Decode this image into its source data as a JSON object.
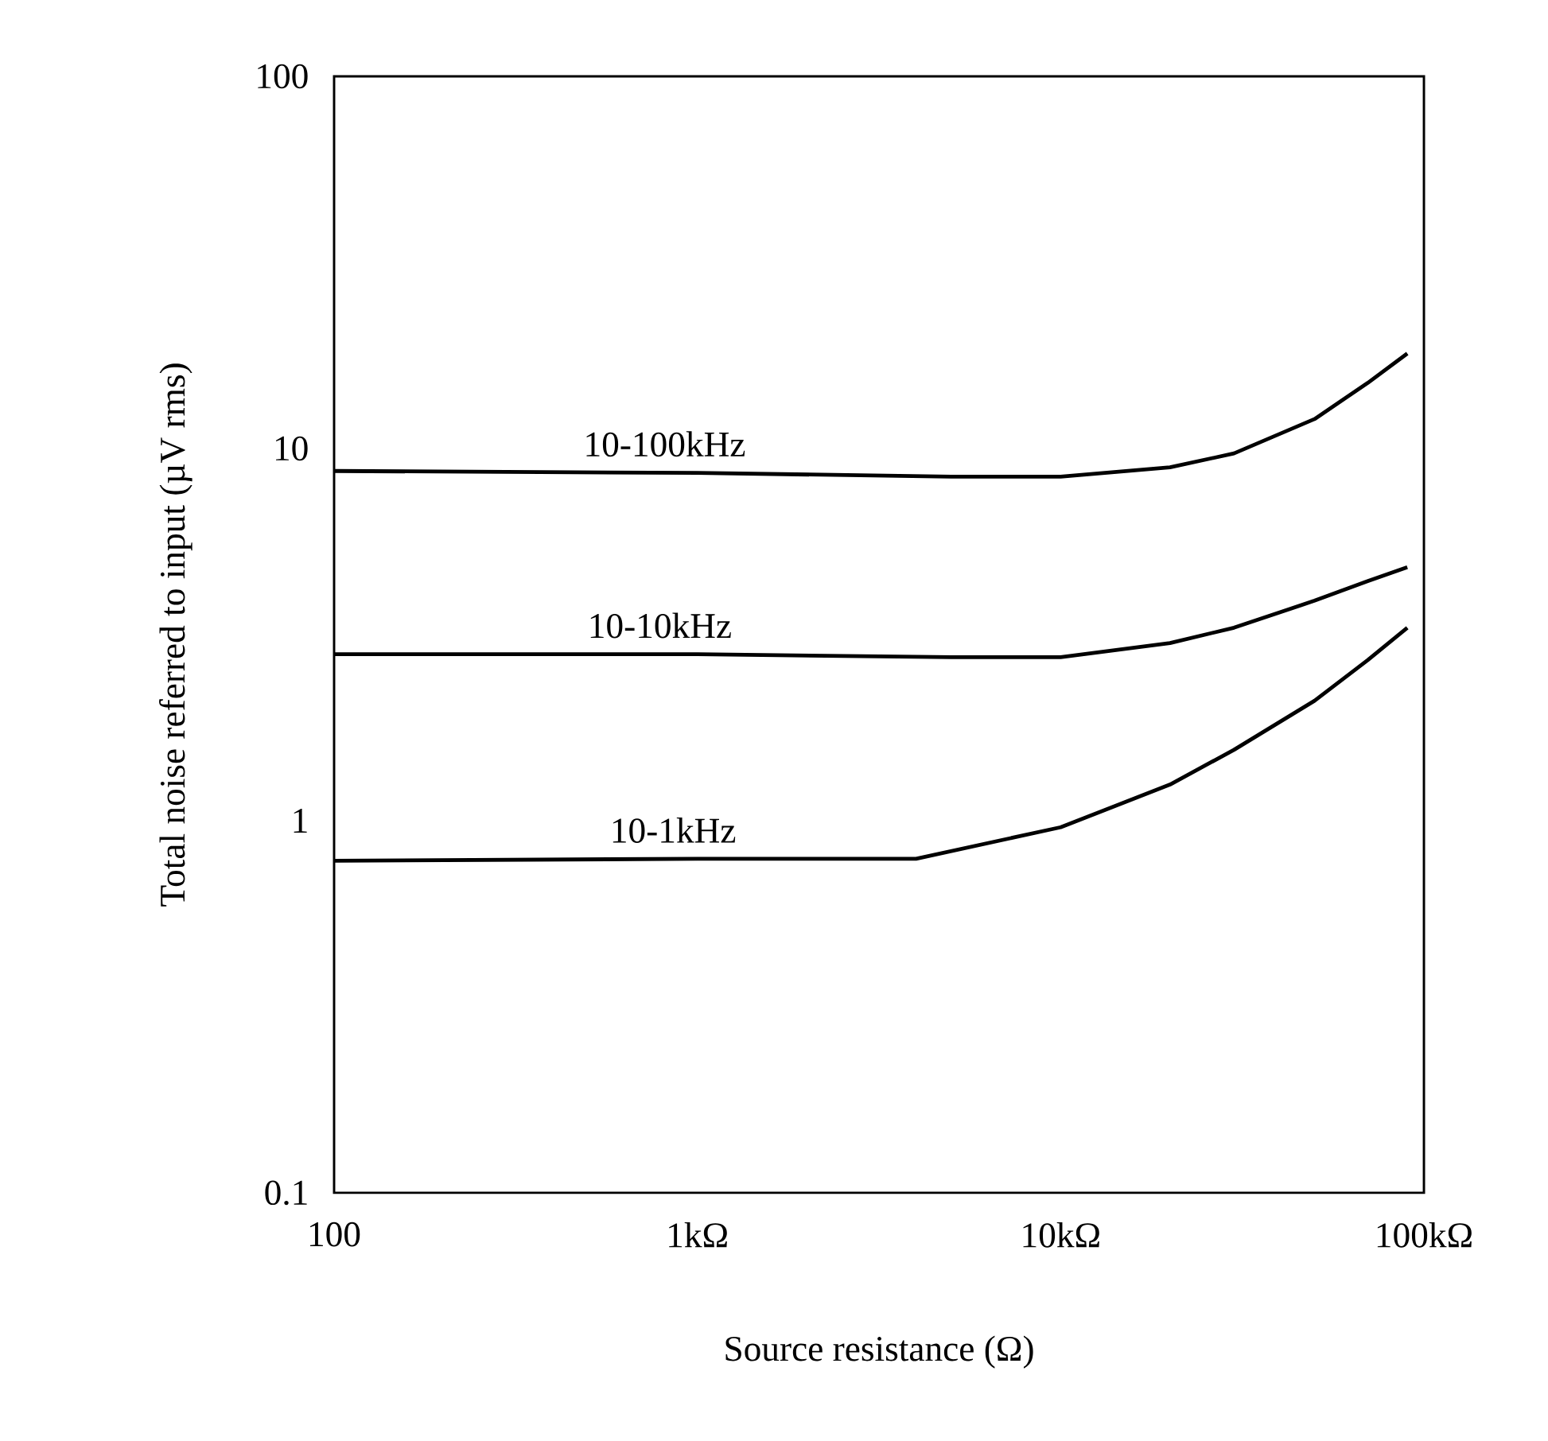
{
  "chart_data": {
    "type": "line",
    "xlabel": "Source resistance (Ω)",
    "ylabel": "Total noise referred to input (µV rms)",
    "log": "xy",
    "xlim": [
      100,
      100000
    ],
    "ylim": [
      0.1,
      100
    ],
    "xticks": [
      100,
      {
        "value": 1000,
        "label": "1kΩ"
      },
      {
        "value": 10000,
        "label": "10kΩ"
      },
      {
        "value": 100000,
        "label": "100kΩ"
      }
    ],
    "yticks": [
      0.1,
      1,
      10,
      100
    ],
    "series": [
      {
        "name": "10-100kHz",
        "color": "#000000",
        "x": [
          100,
          1000,
          5000,
          10000,
          20000,
          30000,
          50000,
          70000,
          90000
        ],
        "values": [
          8.7,
          8.6,
          8.4,
          8.4,
          8.9,
          9.7,
          12.0,
          15.0,
          18.0
        ]
      },
      {
        "name": "10-10kHz",
        "color": "#000000",
        "x": [
          100,
          1000,
          5000,
          10000,
          20000,
          30000,
          50000,
          70000,
          90000
        ],
        "values": [
          2.8,
          2.8,
          2.75,
          2.75,
          3.0,
          3.3,
          3.9,
          4.4,
          4.8
        ]
      },
      {
        "name": "10-1kHz",
        "color": "#000000",
        "x": [
          100,
          1000,
          4000,
          10000,
          20000,
          30000,
          50000,
          70000,
          90000
        ],
        "values": [
          0.78,
          0.79,
          0.79,
          0.96,
          1.25,
          1.55,
          2.1,
          2.7,
          3.3
        ]
      }
    ]
  }
}
